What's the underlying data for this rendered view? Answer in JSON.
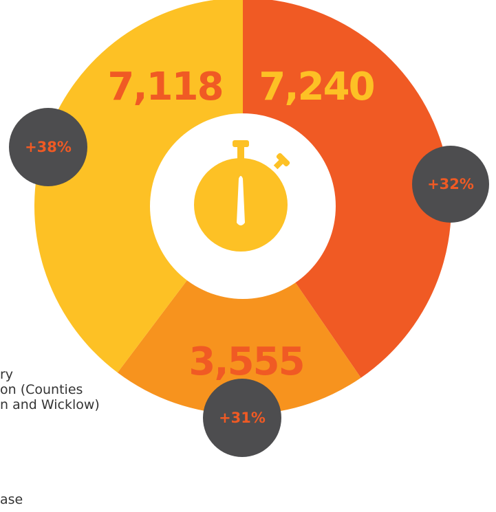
{
  "chart_data": {
    "type": "pie",
    "style": "donut",
    "categories": [
      "7,240",
      "3,555",
      "7,118"
    ],
    "values": [
      7240,
      3555,
      7118
    ],
    "changes": [
      "+32%",
      "+31%",
      "+38%"
    ],
    "value_labels": [
      "7,240",
      "3,555",
      "7,118"
    ],
    "title": "",
    "colors": {
      "slices": [
        "#F05A24",
        "#F7931E",
        "#FDC125"
      ],
      "slice_value_text": [
        "#FDC125",
        "#F05A24",
        "#F05A24"
      ],
      "badge_fill": "#4D4D4F",
      "badge_text": "#F05A24",
      "center_fill": "#FFFFFF",
      "timer_icon": "#FDC125"
    },
    "center_icon": "stopwatch-icon"
  },
  "legend_fragments": [
    "ry",
    "on (Counties",
    "n and Wicklow)",
    "ase"
  ]
}
